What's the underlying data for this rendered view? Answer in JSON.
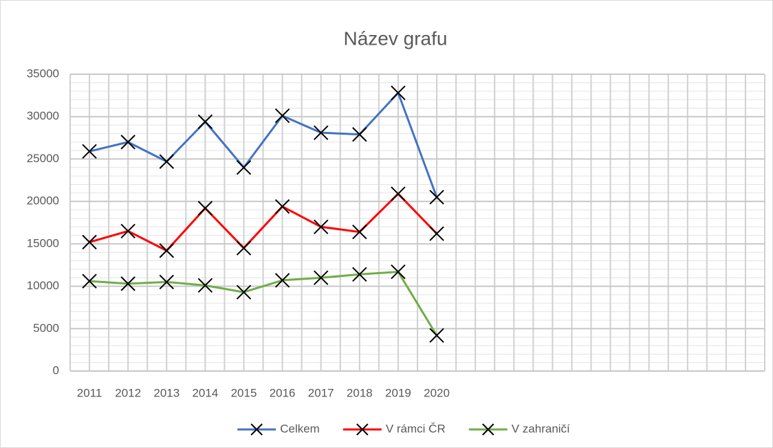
{
  "chart_data": {
    "type": "line",
    "title": "Název grafu",
    "categories": [
      "2011",
      "2012",
      "2013",
      "2014",
      "2015",
      "2016",
      "2017",
      "2018",
      "2019",
      "2020",
      null,
      null,
      null,
      null,
      null,
      null,
      null,
      null
    ],
    "series": [
      {
        "name": "Celkem",
        "color": "#4472c4",
        "values": [
          25900,
          27000,
          24700,
          29400,
          24000,
          30100,
          28100,
          27900,
          32800,
          20500,
          null,
          null,
          null,
          null,
          null,
          null,
          null,
          null
        ]
      },
      {
        "name": "V rámci ČR",
        "color": "#ff0000",
        "values": [
          15200,
          16500,
          14200,
          19200,
          14500,
          19400,
          17000,
          16400,
          20900,
          16200,
          null,
          null,
          null,
          null,
          null,
          null,
          null,
          null
        ]
      },
      {
        "name": "V zahraničí",
        "color": "#70ad47",
        "values": [
          10600,
          10300,
          10500,
          10100,
          9300,
          10700,
          11000,
          11400,
          11700,
          4200,
          null,
          null,
          null,
          null,
          null,
          null,
          null,
          null
        ]
      }
    ],
    "ylim": [
      0,
      35000
    ],
    "yticks": [
      0,
      5000,
      10000,
      15000,
      20000,
      25000,
      30000,
      35000
    ],
    "grid": true,
    "legend": "bottom"
  }
}
